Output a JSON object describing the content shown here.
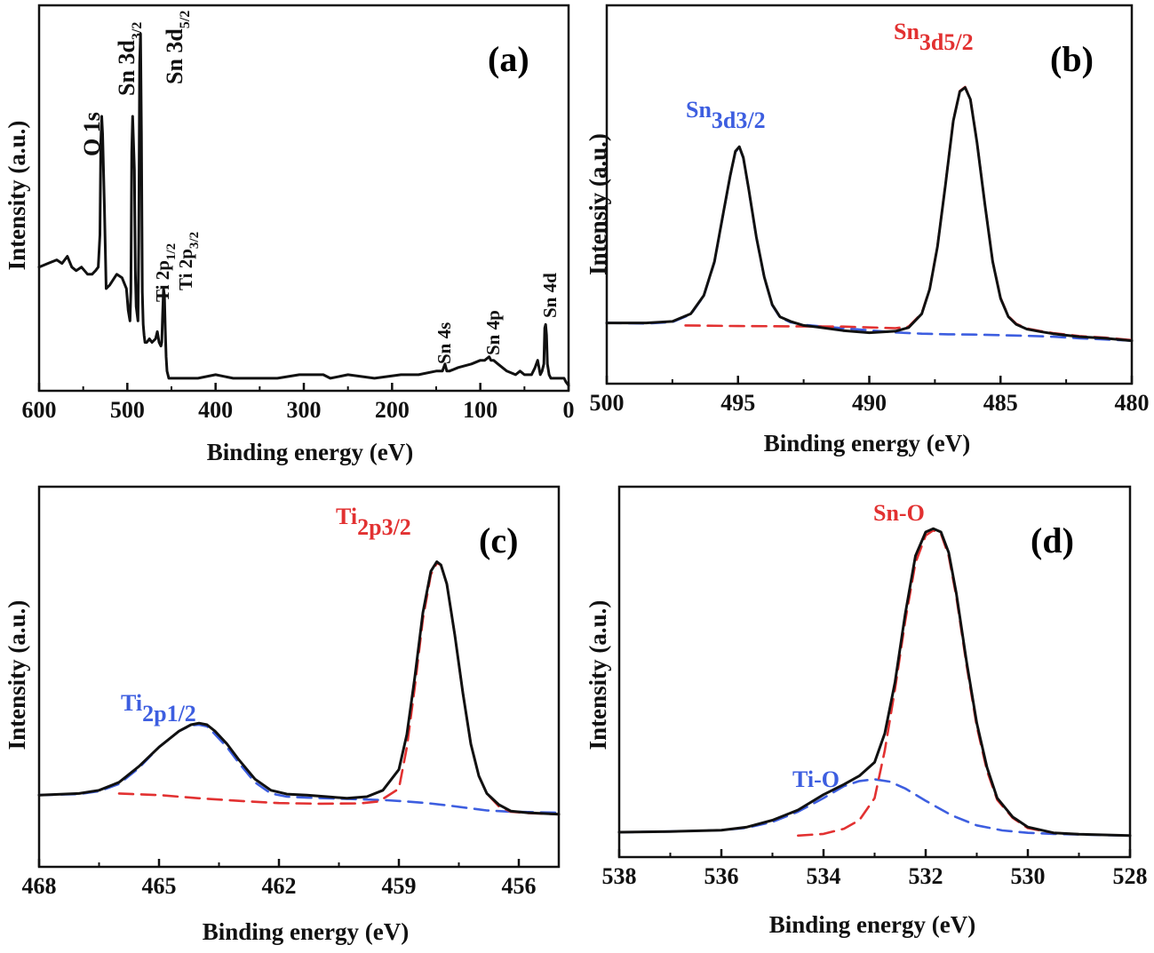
{
  "colors": {
    "measured": "#111111",
    "fit_blue": "#3d5ee0",
    "fit_red": "#e23131"
  },
  "chart_data": [
    {
      "type": "line",
      "panel": "(a)",
      "xlabel": "Binding energy (eV)",
      "ylabel": "Intensity (a.u.)",
      "xlim": [
        600,
        0
      ],
      "ylim": [
        0,
        100
      ],
      "xticks": [
        600,
        500,
        400,
        300,
        200,
        100,
        0
      ],
      "series": [
        {
          "name": "survey",
          "color": "#111111",
          "dash": "none",
          "x": [
            600,
            590,
            580,
            574,
            568,
            563,
            558,
            552,
            545,
            540,
            536,
            533,
            531,
            530,
            529,
            528,
            526,
            524,
            520,
            512,
            506,
            501,
            499,
            497,
            496,
            495,
            494,
            492,
            491,
            490,
            489,
            488,
            487,
            486,
            485,
            484,
            483,
            482,
            481,
            480,
            478,
            475,
            472,
            468,
            466,
            464,
            462,
            461,
            460,
            459,
            458,
            457,
            456,
            455,
            453,
            452,
            450,
            440,
            420,
            400,
            380,
            350,
            330,
            305,
            300,
            282,
            278,
            270,
            250,
            220,
            190,
            170,
            150,
            143,
            140,
            138,
            135,
            125,
            110,
            100,
            95,
            90,
            88,
            85,
            80,
            70,
            60,
            55,
            50,
            42,
            38,
            35,
            32,
            30,
            28,
            27,
            26,
            25,
            24,
            22,
            20,
            18,
            15,
            10,
            8,
            5,
            3,
            0
          ],
          "y": [
            33,
            34,
            35,
            34,
            36,
            33,
            32,
            33,
            31,
            31,
            32,
            33,
            42,
            68,
            75,
            70,
            50,
            27,
            28,
            31,
            30,
            27,
            21,
            18,
            26,
            65,
            75,
            60,
            32,
            22,
            20,
            18,
            40,
            90,
            98,
            70,
            26,
            17,
            14,
            12,
            12,
            13,
            12,
            13,
            15,
            12,
            11,
            12,
            20,
            27,
            25,
            16,
            8,
            4,
            2,
            2,
            2,
            2,
            2,
            3,
            2,
            2,
            2,
            3,
            3,
            3,
            3,
            2,
            3,
            2,
            3,
            3,
            4,
            4,
            6,
            4,
            4,
            5,
            6,
            7,
            7,
            8,
            7,
            7,
            6,
            4,
            3,
            4,
            3,
            3,
            5,
            7,
            3,
            4,
            6,
            16,
            17,
            14,
            6,
            3,
            2,
            2,
            2,
            2,
            2,
            2,
            1,
            0
          ]
        }
      ],
      "annotations": [
        "O 1s",
        "Sn 3d",
        "3/2",
        "Sn 3d",
        "5/2",
        "Ti 2p",
        "1/2",
        "Ti 2p",
        "3/2",
        "Sn 4s",
        "Sn 4p",
        "Sn 4d"
      ]
    },
    {
      "type": "line",
      "panel": "(b)",
      "xlabel": "Binding energy (eV)",
      "ylabel": "Intensiy (a.u.)",
      "xlim": [
        500,
        480
      ],
      "ylim": [
        0,
        100
      ],
      "xticks": [
        500,
        495,
        490,
        485,
        480
      ],
      "series": [
        {
          "name": "measured",
          "color": "#111111",
          "dash": "none",
          "x": [
            500,
            498.5,
            497.5,
            496.8,
            496.3,
            495.9,
            495.6,
            495.3,
            495.1,
            494.95,
            494.8,
            494.6,
            494.3,
            494,
            493.7,
            493.4,
            493,
            492.5,
            492,
            491,
            490,
            489,
            488.5,
            488,
            487.7,
            487.4,
            487.1,
            486.8,
            486.55,
            486.35,
            486.15,
            485.9,
            485.6,
            485.3,
            485,
            484.7,
            484.4,
            484,
            483.5,
            483,
            482,
            481,
            480
          ],
          "y": [
            12,
            12,
            12.5,
            15,
            21,
            32,
            46,
            60,
            68,
            69.5,
            66,
            56,
            40,
            27,
            18,
            14,
            12.5,
            11.2,
            10.7,
            9.5,
            8.8,
            9.3,
            10.5,
            15,
            23,
            37,
            57,
            78,
            87.5,
            88.8,
            85,
            71,
            51,
            32,
            20,
            14,
            11.5,
            10,
            9.2,
            8.5,
            7.5,
            7,
            6.2
          ]
        },
        {
          "name": "Sn3d3/2 fit",
          "color": "#3d5ee0",
          "dash": "16,9",
          "x": [
            500,
            498.5,
            497.5,
            496.8,
            496.3,
            495.9,
            495.6,
            495.3,
            495.1,
            494.95,
            494.8,
            494.6,
            494.3,
            494,
            493.7,
            493.4,
            493,
            492.5,
            492,
            491,
            490,
            489,
            488,
            487,
            486,
            485,
            484,
            483,
            482,
            481,
            480
          ],
          "y": [
            12,
            11.8,
            12.3,
            14.8,
            20.8,
            31.8,
            45.8,
            59.8,
            67.8,
            69.3,
            65.8,
            55.8,
            39.8,
            26.8,
            17.8,
            13.8,
            12.2,
            11.4,
            11,
            10.3,
            9.6,
            8.9,
            8.5,
            8.3,
            8.2,
            8,
            7.8,
            7.5,
            7,
            6.6,
            6.2
          ]
        },
        {
          "name": "Sn3d5/2 fit",
          "color": "#e23131",
          "dash": "16,9",
          "x": [
            497,
            495,
            493,
            491,
            489,
            488.5,
            488,
            487.7,
            487.4,
            487.1,
            486.8,
            486.55,
            486.35,
            486.15,
            485.9,
            485.6,
            485.3,
            485,
            484.7,
            484.4,
            484,
            483.5,
            483,
            482,
            481,
            480
          ],
          "y": [
            11.2,
            11,
            10.9,
            10.8,
            10.3,
            10.8,
            15.2,
            23.2,
            37.2,
            57.2,
            78.2,
            87.7,
            89,
            85.2,
            71.2,
            51.2,
            32.2,
            20.2,
            14.2,
            11.7,
            10.2,
            9.4,
            8.7,
            7.7,
            7.2,
            6.4
          ]
        }
      ],
      "annotations": [
        "Sn",
        "3d3/2",
        "Sn",
        "3d5/2"
      ]
    },
    {
      "type": "line",
      "panel": "(c)",
      "xlabel": "Binding energy (eV)",
      "ylabel": "Intensity (a.u.)",
      "xlim": [
        468,
        455
      ],
      "ylim": [
        0,
        100
      ],
      "xticks": [
        468,
        465,
        462,
        459,
        456
      ],
      "series": [
        {
          "name": "measured",
          "color": "#111111",
          "dash": "none",
          "x": [
            468,
            467,
            466.5,
            466,
            465.5,
            465,
            464.5,
            464.2,
            464,
            463.8,
            463.6,
            463.3,
            463,
            462.6,
            462.2,
            461.8,
            461.3,
            460.8,
            460.3,
            459.8,
            459.4,
            459,
            458.8,
            458.6,
            458.4,
            458.2,
            458.05,
            457.95,
            457.8,
            457.6,
            457.4,
            457.2,
            457,
            456.8,
            456.5,
            456.2,
            455.8,
            455
          ],
          "y": [
            18,
            18.5,
            19.5,
            22,
            27,
            33,
            38,
            40,
            40.5,
            40,
            38,
            34,
            29,
            23,
            19.5,
            18.3,
            18,
            17.5,
            17,
            17.5,
            19.5,
            26,
            37,
            55,
            75,
            88,
            91,
            90,
            84,
            68,
            50,
            34,
            24,
            18.5,
            15,
            13,
            12.5,
            12
          ]
        },
        {
          "name": "Ti2p1/2 fit",
          "color": "#3d5ee0",
          "dash": "16,9",
          "x": [
            468,
            467,
            466.5,
            466,
            465.5,
            465,
            464.5,
            464.2,
            464,
            463.8,
            463.6,
            463.3,
            463,
            462.6,
            462.2,
            461.8,
            461.3,
            460.8,
            460.3,
            459.8,
            459.3,
            458.8,
            458.3,
            457.8,
            457.3,
            456.8,
            456.2,
            455.5,
            455
          ],
          "y": [
            18,
            18.3,
            19.2,
            21.5,
            26.5,
            33,
            38,
            39.8,
            40,
            39.5,
            37,
            33,
            28,
            22,
            18.5,
            17.5,
            17.2,
            17,
            16.8,
            16.6,
            16.4,
            16,
            15.5,
            14.8,
            14,
            13.2,
            12.8,
            12.6,
            12.5
          ]
        },
        {
          "name": "Ti2p3/2 fit",
          "color": "#e23131",
          "dash": "16,9",
          "x": [
            466,
            465,
            464,
            463,
            462,
            461,
            460,
            459.5,
            459,
            458.8,
            458.6,
            458.4,
            458.2,
            458.05,
            457.95,
            457.8,
            457.6,
            457.4,
            457.2,
            457,
            456.8,
            456.5,
            456.2,
            455.8,
            455
          ],
          "y": [
            18.5,
            18,
            17,
            16.2,
            15.5,
            15.3,
            15.4,
            16,
            20,
            33,
            52,
            73,
            87,
            90.5,
            90,
            84,
            68,
            50,
            34,
            24,
            18.5,
            14.5,
            12.8,
            12.4,
            12
          ]
        }
      ],
      "annotations": [
        "Ti",
        "2p1/2",
        "Ti",
        "2p3/2"
      ]
    },
    {
      "type": "line",
      "panel": "(d)",
      "xlabel": "Binding energy (eV)",
      "ylabel": "Intensity (a.u.)",
      "xlim": [
        538,
        528
      ],
      "ylim": [
        0,
        100
      ],
      "xticks": [
        538,
        536,
        534,
        532,
        530,
        528
      ],
      "series": [
        {
          "name": "measured",
          "color": "#111111",
          "dash": "none",
          "x": [
            538,
            537,
            536,
            535.5,
            535,
            534.5,
            534,
            533.6,
            533.3,
            533,
            532.8,
            532.6,
            532.4,
            532.2,
            532,
            531.85,
            531.7,
            531.55,
            531.4,
            531.2,
            531,
            530.8,
            530.6,
            530.3,
            530,
            529.5,
            529,
            528
          ],
          "y": [
            6,
            6.2,
            6.6,
            7.5,
            9.5,
            12.5,
            17,
            20,
            22.5,
            26.5,
            35,
            50,
            70,
            87,
            94,
            95,
            94,
            88,
            76,
            56,
            38,
            25,
            16,
            10.5,
            7.5,
            5.8,
            5.4,
            5
          ]
        },
        {
          "name": "Ti-O fit",
          "color": "#3d5ee0",
          "dash": "16,9",
          "x": [
            538,
            537,
            536,
            535.5,
            535,
            534.5,
            534,
            533.6,
            533.3,
            533,
            532.7,
            532.4,
            532,
            531.5,
            531,
            530.5,
            530,
            529.5,
            529,
            528
          ],
          "y": [
            6,
            6.2,
            6.6,
            7.3,
            9,
            12,
            16,
            19.5,
            21,
            21.5,
            20.8,
            18.8,
            15.2,
            11,
            8,
            6.5,
            5.8,
            5.5,
            5.3,
            5
          ]
        },
        {
          "name": "Sn-O fit",
          "color": "#e23131",
          "dash": "16,9",
          "x": [
            534.5,
            534,
            533.6,
            533.3,
            533,
            532.8,
            532.6,
            532.4,
            532.2,
            532,
            531.85,
            531.7,
            531.55,
            531.4,
            531.2,
            531,
            530.8,
            530.6,
            530.3,
            530,
            529.5,
            529
          ],
          "y": [
            5,
            5.5,
            7,
            9.5,
            16,
            30,
            48,
            68,
            85,
            93,
            94.5,
            93.5,
            87,
            75,
            55,
            37,
            24,
            15.5,
            10.2,
            7.2,
            5.8,
            5.4
          ]
        }
      ],
      "annotations": [
        "Ti-O",
        "Sn-O"
      ]
    }
  ]
}
